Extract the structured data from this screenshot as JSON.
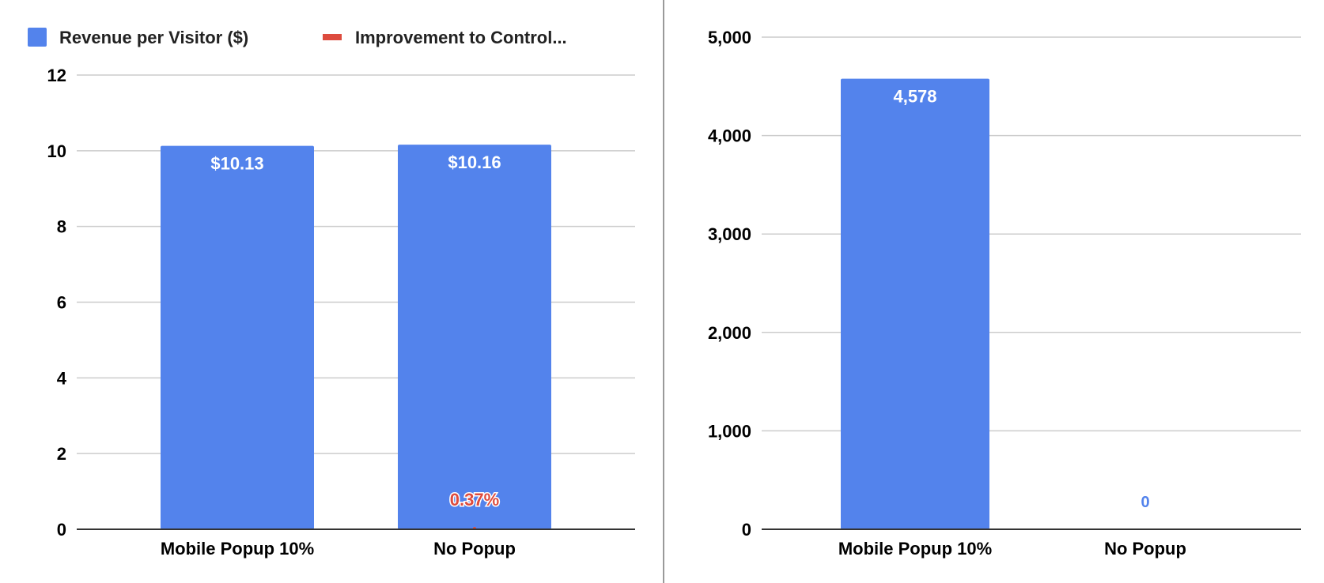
{
  "chart_data": [
    {
      "type": "bar",
      "title": "",
      "categories": [
        "Mobile Popup 10%",
        "No Popup"
      ],
      "series": [
        {
          "name": "Revenue per Visitor ($)",
          "values": [
            10.13,
            10.16
          ],
          "labels": [
            "$10.13",
            "$10.16"
          ],
          "color": "#5383EC"
        },
        {
          "name": "Improvement to Control...",
          "values": [
            null,
            0.37
          ],
          "labels": [
            "",
            "0.37%"
          ],
          "color": "#DD4B3E",
          "kind": "line"
        }
      ],
      "legend": "top-left",
      "ylim": [
        0,
        12
      ],
      "yticks": [
        "0",
        "2",
        "4",
        "6",
        "8",
        "10",
        "12"
      ],
      "grid": true
    },
    {
      "type": "bar",
      "title": "",
      "categories": [
        "Mobile Popup 10%",
        "No Popup"
      ],
      "series": [
        {
          "name": "",
          "values": [
            4578,
            0
          ],
          "labels": [
            "4,578",
            "0"
          ],
          "color": "#5383EC"
        }
      ],
      "ylim": [
        0,
        5000
      ],
      "yticks": [
        "0",
        "1,000",
        "2,000",
        "3,000",
        "4,000",
        "5,000"
      ],
      "grid": true
    }
  ]
}
